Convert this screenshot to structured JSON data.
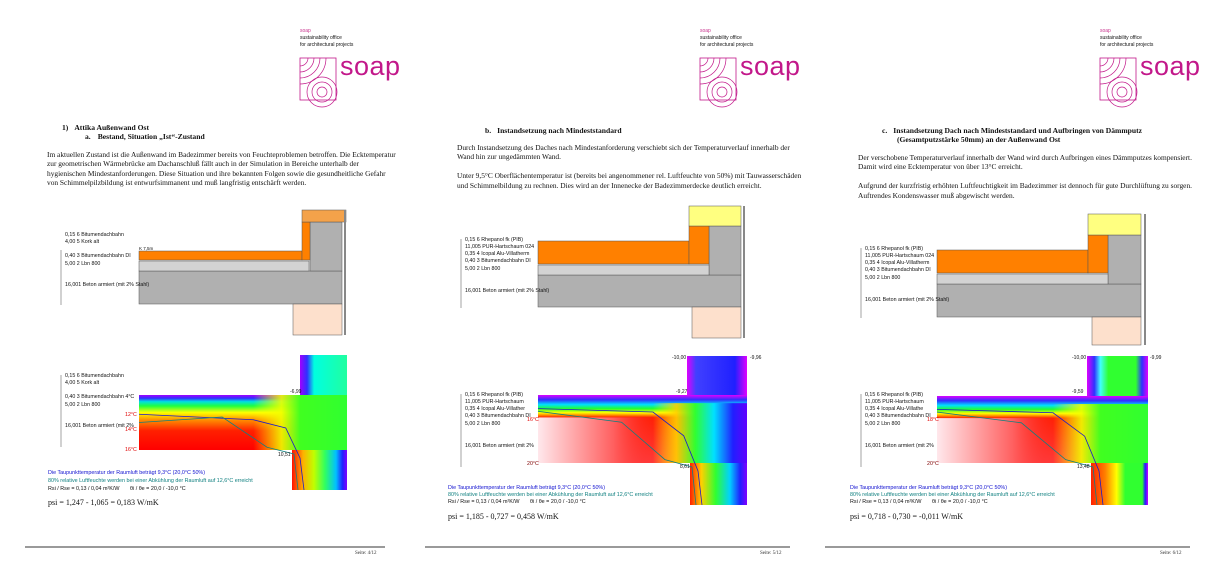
{
  "pages": [
    {
      "logo": {
        "small": "soap",
        "line1": "sustainability office",
        "line2": "for architectural projects",
        "wordmark": "soap"
      },
      "heading_num": "1)",
      "heading": "Attika Außenwand Ost",
      "subheading_num": "a.",
      "subheading": "Bestand, Situation „Ist“-Zustand",
      "paragraphs": [
        "Im aktuellen Zustand ist die Außenwand im Badezimmer bereits von Feuchteproblemen betroffen. Die Ecktemperatur zur geometrischen Wärmebrücke am Dachanschluß fällt auch in der Simulation in Bereiche unterhalb der hygienischen Mindestanforderungen. Diese Situation und ihre bekannten Folgen sowie die gesundheitliche Gefahr von Schimmelpilzbildung ist entwurfsimmanent und muß langfristig entschärft werden."
      ],
      "construction": {
        "marker": "K 7,5m",
        "layers": [
          "0,15 6 Bitumendachbahn",
          "4,00 5 Kork alt",
          "0,40 3 Bitumendachbahn DI",
          "5,00 2 Lbn 800",
          "16,001 Beton armiert (mit 2% Stahl)"
        ]
      },
      "thermal": {
        "layers": [
          "0,15 6 Bitumendachbahn",
          "4,00 5 Kork alt",
          "0,40 3 Bitumendachbahn 4°C",
          "5,00 2 Lbn 800",
          "16,001 Beton armiert (mit 2%"
        ],
        "isotherms": [
          "12°C",
          "14°C",
          "16°C"
        ],
        "values": [
          "-6,99",
          "10,51"
        ],
        "dewpoint_text": "Die Taupunkttemperatur der Raumluft beträgt 9,3°C (20,0°C  50%)",
        "humidity_text": "80% relative Luftfeuchte werden bei einer Abkühlung der Raumluft auf 12,6°C erreicht",
        "resistance_text": "Rsi / Rse = 0,13 / 0,04 m²K/W",
        "temperature_text": "θi / θe = 20,0 / -10,0 °C"
      },
      "psi": "psi = 1,247 - 1,065 = 0,183 W/mK",
      "footer": "Seite: 4/12"
    },
    {
      "logo": {
        "small": "soap",
        "line1": "sustainability office",
        "line2": "for architectural projects",
        "wordmark": "soap"
      },
      "heading_num": "b.",
      "heading": "Instandsetzung nach Mindeststandard",
      "subheading_num": "",
      "subheading": "",
      "paragraphs": [
        "Durch Instandsetzung des Daches nach Mindestanforderung verschiebt sich der Temperaturverlauf innerhalb der Wand hin zur ungedämmten Wand.",
        "Unter 9,5°C Oberflächentemperatur ist (bereits bei angenommener rel. Luftfeuchte von 50%) mit Tauwasserschäden und Schimmelbildung zu rechnen. Dies wird an der Innenecke der Badezimmerdecke deutlich erreicht."
      ],
      "construction": {
        "marker": "",
        "layers": [
          "0,15 6 Rhepanol fk (PIB)",
          "11,005 PUR-Hartschaum 024",
          "0,35 4 Icopal Alu-Villatherm",
          "0,40 3 Bitumendachbahn DI",
          "5,00 2 Lbn 800",
          "16,001 Beton armiert (mit 2% Stahl)"
        ]
      },
      "thermal": {
        "layers": [
          "0,15 6 Rhepanol fk (PIB)",
          "11,005 PUR-Hartschaum",
          "0,35 4 Icopal Alu-Villather",
          "0,40 3 Bitumendachbahn DI",
          "5,00 2 Lbn 800",
          "16,001 Beton armiert (mit 2%"
        ],
        "isotherms": [
          "16°C",
          "20°C"
        ],
        "values": [
          "-10,00",
          "-9,96",
          "-9,27",
          "8,61"
        ],
        "dewpoint_text": "Die Taupunkttemperatur der Raumluft beträgt 9,3°C (20,0°C  50%)",
        "humidity_text": "80% relative Luftfeuchte werden bei einer Abkühlung der Raumluft auf 12,6°C erreicht",
        "resistance_text": "Rsi / Rse = 0,13 / 0,04 m²K/W",
        "temperature_text": "θi / θe = 20,0 / -10,0 °C"
      },
      "psi": "psi = 1,185 - 0,727 = 0,458 W/mK",
      "footer": "Seite: 5/12"
    },
    {
      "logo": {
        "small": "soap",
        "line1": "sustainability office",
        "line2": "for architectural projects",
        "wordmark": "soap"
      },
      "heading_num": "c.",
      "heading": "Instandsetzung Dach nach Mindeststandard und Aufbringen von Dämmputz",
      "subheading_num": "",
      "subheading": "(Gesamtputzstärke 50mm) an der Außenwand Ost",
      "paragraphs": [
        "Der verschobene Temperaturverlauf innerhalb der Wand wird durch Aufbringen eines Dämmputzes kompensiert. Damit wird eine Ecktemperatur von über 13°C erreicht.",
        "Aufgrund der kurzfristig erhöhten Luftfeuchtigkeit im Badezimmer ist dennoch für gute Durchlüftung zu sorgen. Auftrendes Kondenswasser muß abgewischt werden."
      ],
      "construction": {
        "marker": "",
        "layers": [
          "0,15 6 Rhepanol fk (PIB)",
          "11,005 PUR-Hartschaum 024",
          "0,35 4 Icopal Alu-Villatherm",
          "0,40 3 Bitumendachbahn DI",
          "5,00 2 Lbn 800",
          "16,001 Beton armiert (mit 2% Stahl)"
        ]
      },
      "thermal": {
        "layers": [
          "0,15 6 Rhepanol fk (PIB)",
          "11,005 PUR-Hartschaum",
          "0,35 4 Icopal Alu-Villathe",
          "0,40 3 Bitumendachbahn DI",
          "5,00 2 Lbn 800",
          "16,001 Beton armiert (mit 2%"
        ],
        "isotherms": [
          "18°C",
          "20°C"
        ],
        "values": [
          "-10,00",
          "-9,99",
          "-9,59",
          "13,48"
        ],
        "dewpoint_text": "Die Taupunkttemperatur der Raumluft beträgt 9,3°C (20,0°C  50%)",
        "humidity_text": "80% relative Luftfeuchte werden bei einer Abkühlung der Raumluft auf 12,6°C erreicht",
        "resistance_text": "Rsi / Rse = 0,13 / 0,04 m²K/W",
        "temperature_text": "θi / θe = 20,0 / -10,0 °C"
      },
      "psi": "psi = 0,718 - 0,730 = -0,011 W/mK",
      "footer": "Seite: 6/12"
    }
  ],
  "colors": {
    "brand": "#c2188a",
    "insulation": "#ff8000",
    "cork": "#f4a24a",
    "render": "#ffff80",
    "concrete": "#b0b0b0",
    "screed": "#d3d3d3",
    "plaster": "#fde0cc",
    "dewpoint_text": "#1010d0",
    "humidity_text": "#108080"
  }
}
